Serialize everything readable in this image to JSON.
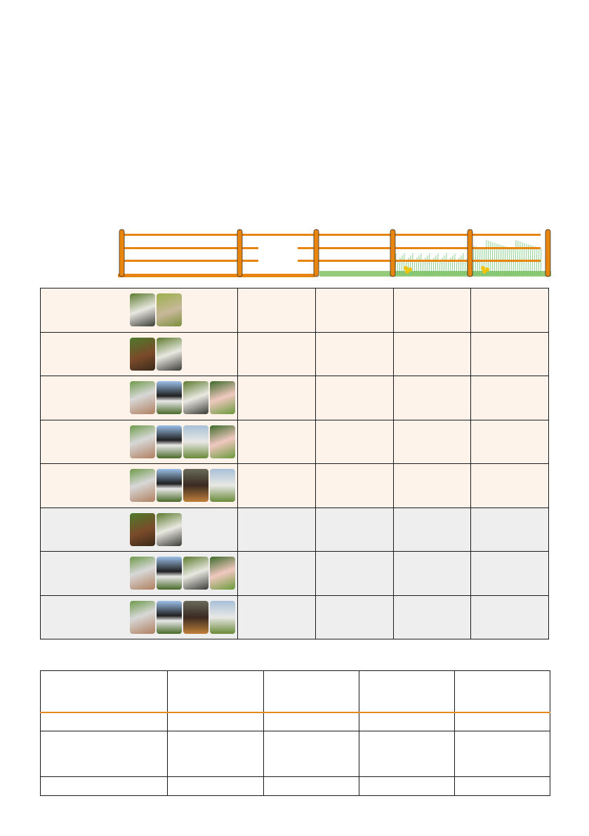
{
  "colors": {
    "fence_orange": "#e8850f",
    "warm_row": "#fdf3ea",
    "grey_row": "#eeeeee",
    "header_rule": "#e08a1e",
    "grass": "#4cae4c"
  },
  "fence_illustration": {
    "segments": [
      "plain-fence",
      "fence-with-gap",
      "short-grass",
      "medium-grass-flowers",
      "tall-grass-flowers"
    ]
  },
  "animal_colors": {
    "dog": "linear-gradient(160deg,#5d7a2e,#e8e8e0 50%,#3b3b36)",
    "cat": "linear-gradient(160deg,#9bb04a,#c8b89a 55%,#7b8f3a)",
    "horse": "linear-gradient(160deg,#4d7a2a,#7a4a2a 55%,#3a2a1a)",
    "horse-white": "linear-gradient(160deg,#6d9a4a,#d8d8d8 45%,#b08060)",
    "cow": "linear-gradient(180deg,#9cc0e8,#202020 45%,#e8e8e8 60%,#4a6a2a)",
    "pig": "linear-gradient(160deg,#3c6a2a,#f0c8c0 50%,#6a9a3a)",
    "sheep": "linear-gradient(180deg,#a8c0d8,#e8e8e4 50%,#6a8a3a)",
    "boar": "linear-gradient(180deg,#6a6a5a,#3a2a22 50%,#c0803a)"
  },
  "compat_table": {
    "columns": 5,
    "rows": [
      {
        "tone": "warm",
        "animals": [
          "dog",
          "cat"
        ]
      },
      {
        "tone": "warm",
        "animals": [
          "horse",
          "dog"
        ]
      },
      {
        "tone": "warm",
        "animals": [
          "horse-white",
          "cow",
          "dog",
          "pig"
        ]
      },
      {
        "tone": "warm",
        "animals": [
          "horse-white",
          "cow",
          "sheep",
          "pig"
        ]
      },
      {
        "tone": "warm",
        "animals": [
          "horse-white",
          "cow",
          "boar",
          "sheep"
        ]
      },
      {
        "tone": "grey",
        "animals": [
          "horse",
          "dog"
        ]
      },
      {
        "tone": "grey",
        "animals": [
          "horse-white",
          "cow",
          "dog",
          "pig"
        ]
      },
      {
        "tone": "grey",
        "animals": [
          "horse-white",
          "cow",
          "boar",
          "sheep"
        ]
      }
    ]
  },
  "spec_table": {
    "columns": 5,
    "rows": 4
  }
}
